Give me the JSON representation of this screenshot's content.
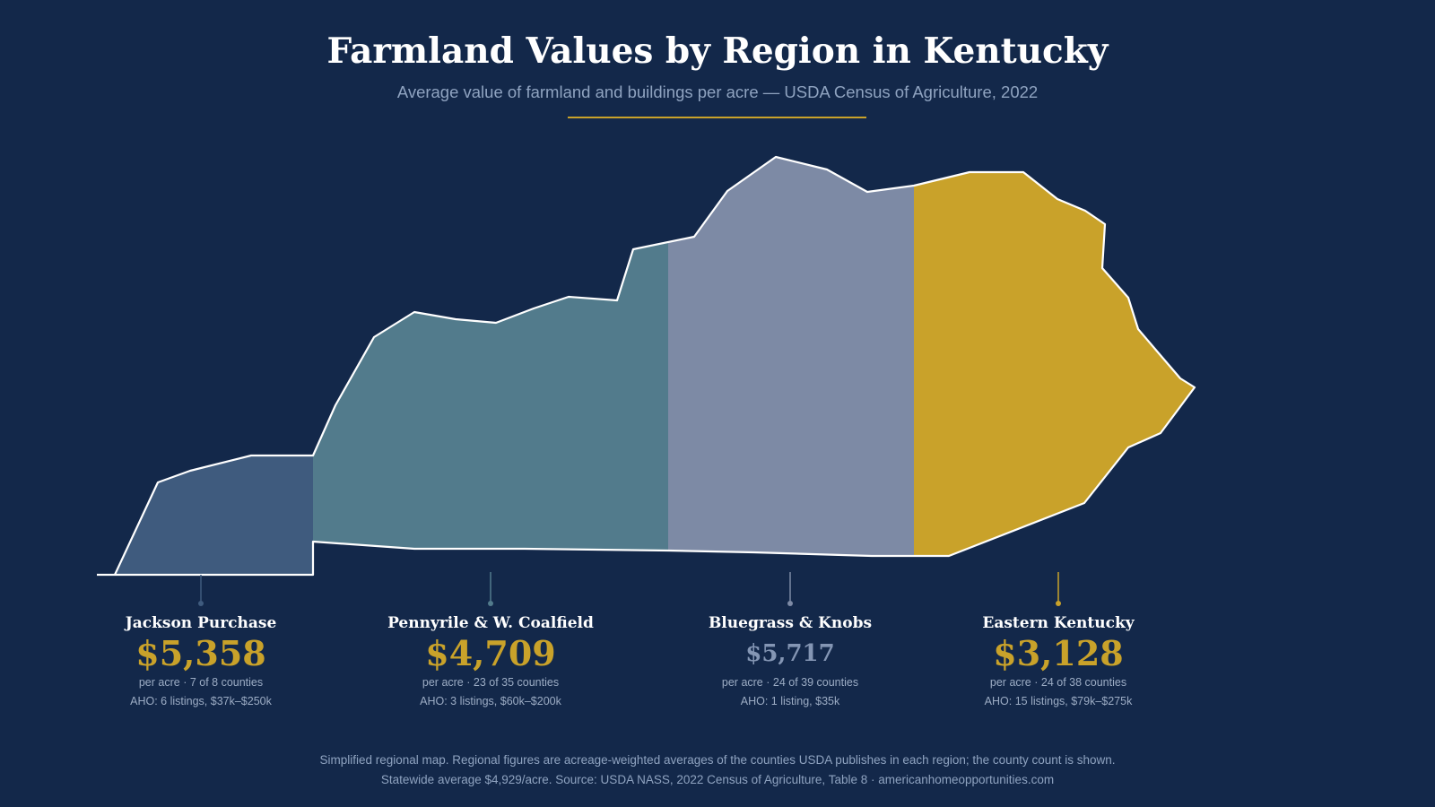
{
  "title": "Farmland Values by Region in Kentucky",
  "subtitle": "Average value of farmland and buildings per acre — USDA Census of Agriculture, 2022",
  "colors": {
    "background": "#13284a",
    "accent": "#c9a22a",
    "jackson_purchase": "#3f5b7e",
    "pennyrile": "#527b8c",
    "bluegrass": "#7d8aa5",
    "eastern": "#c9a22a",
    "outline": "#ffffff"
  },
  "regions": [
    {
      "name": "Jackson Purchase",
      "value": "$5,358",
      "detail": "per acre · 7 of 8 counties",
      "aho": "AHO: 6 listings, $37k–$250k"
    },
    {
      "name": "Pennyrile & W. Coalfield",
      "value": "$4,709",
      "detail": "per acre · 23 of 35 counties",
      "aho": "AHO: 3 listings, $60k–$200k"
    },
    {
      "name": "Bluegrass & Knobs",
      "value": "$5,717",
      "detail": "per acre · 24 of 39 counties",
      "aho": "AHO: 1 listing, $35k"
    },
    {
      "name": "Eastern Kentucky",
      "value": "$3,128",
      "detail": "per acre · 24 of 38 counties",
      "aho": "AHO: 15 listings, $79k–$275k"
    }
  ],
  "footer": {
    "line1": "Simplified regional map. Regional figures are acreage-weighted averages of the counties USDA publishes in each region; the county count is shown.",
    "line2": "Statewide average $4,929/acre. Source: USDA NASS, 2022 Census of Agriculture, Table 8 · americanhomeopportunities.com"
  }
}
